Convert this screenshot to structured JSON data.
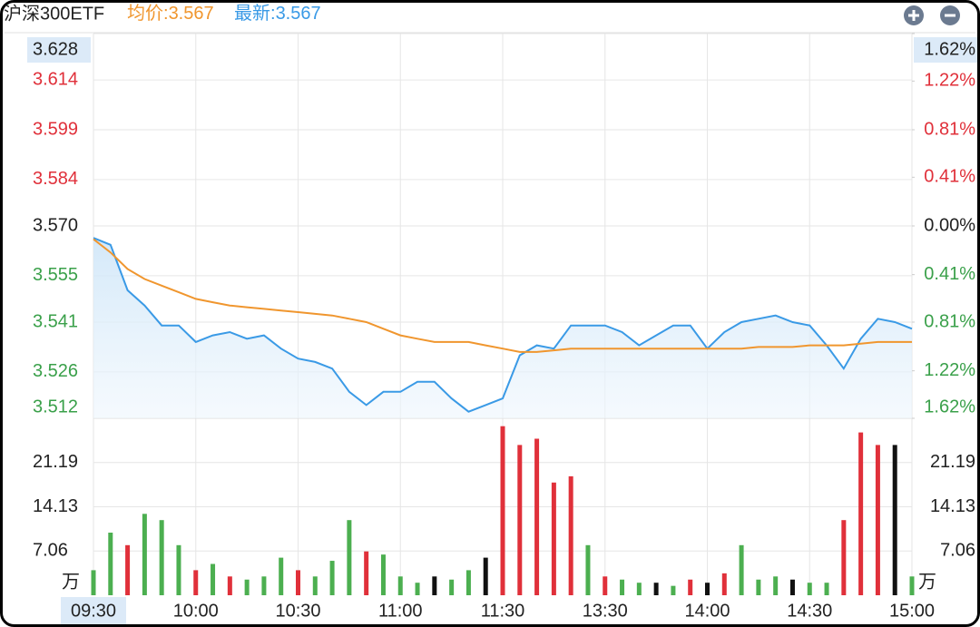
{
  "header": {
    "title": "沪深300ETF",
    "quotes": [
      {
        "label": "均价:",
        "value": 3.567,
        "color": "#f0962e"
      },
      {
        "label": "最新:",
        "value": 3.567,
        "color": "#3a9ae6"
      }
    ]
  },
  "chart_data": {
    "type": "line",
    "categories": [
      "09:30",
      null,
      null,
      null,
      null,
      null,
      "10:00",
      null,
      null,
      null,
      null,
      null,
      "10:30",
      null,
      null,
      null,
      null,
      null,
      "11:00",
      null,
      null,
      null,
      null,
      null,
      "11:30",
      null,
      null,
      null,
      null,
      null,
      "13:30",
      null,
      null,
      null,
      null,
      null,
      "14:00",
      null,
      null,
      null,
      null,
      null,
      "14:30",
      null,
      null,
      null,
      null,
      null,
      "15:00"
    ],
    "series": [
      {
        "color": "#3a9ae6",
        "values": [
          3.5664,
          3.5643,
          3.5506,
          3.546,
          3.54,
          3.54,
          3.535,
          3.537,
          3.538,
          3.536,
          3.537,
          3.533,
          3.53,
          3.529,
          3.527,
          3.52,
          3.516,
          3.52,
          3.52,
          3.523,
          3.523,
          3.518,
          3.514,
          3.516,
          3.518,
          3.531,
          3.534,
          3.533,
          3.54,
          3.54,
          3.54,
          3.538,
          3.534,
          3.537,
          3.54,
          3.54,
          3.533,
          3.538,
          3.541,
          3.542,
          3.543,
          3.541,
          3.54,
          3.534,
          3.527,
          3.536,
          3.542,
          3.541,
          3.539
        ]
      },
      {
        "color": "#f0962e",
        "values": [
          3.566,
          3.562,
          3.557,
          3.554,
          3.552,
          3.55,
          3.548,
          3.547,
          3.546,
          3.5455,
          3.545,
          3.5445,
          3.544,
          3.5435,
          3.543,
          3.542,
          3.541,
          3.539,
          3.537,
          3.536,
          3.535,
          3.535,
          3.535,
          3.534,
          3.533,
          3.532,
          3.532,
          3.5325,
          3.533,
          3.533,
          3.533,
          3.533,
          3.533,
          3.533,
          3.533,
          3.533,
          3.533,
          3.533,
          3.533,
          3.5335,
          3.5335,
          3.5335,
          3.534,
          3.534,
          3.534,
          3.5345,
          3.535,
          3.535,
          3.535
        ]
      }
    ],
    "ylim": [
      3.512,
      3.628
    ],
    "yticks": [
      3.512,
      3.526,
      3.541,
      3.555,
      {
        "value": 3.57,
        "label": "3.570"
      },
      3.584,
      3.599,
      3.614,
      3.628
    ],
    "y2lim": [
      -1.62,
      1.62
    ],
    "y2ticks": [
      {
        "value": -1.62,
        "label": "1.62%"
      },
      {
        "value": -1.22,
        "label": "1.22%"
      },
      {
        "value": -0.81,
        "label": "0.81%"
      },
      {
        "value": -0.41,
        "label": "0.41%"
      },
      {
        "value": 0,
        "label": "0.00%"
      },
      {
        "value": 0.41,
        "label": "0.41%"
      },
      {
        "value": 0.81,
        "label": "0.81%"
      },
      {
        "value": 1.22,
        "label": "1.22%"
      },
      {
        "value": 1.62,
        "label": "1.62%"
      }
    ],
    "grid": true,
    "volume": {
      "type": "bar",
      "unit": "万",
      "ylim": [
        0,
        28.26
      ],
      "yticks": [
        7.06,
        14.13,
        21.19
      ],
      "values": [
        4,
        10,
        8,
        13,
        12,
        8,
        4,
        5,
        3,
        2.5,
        3,
        6,
        4,
        3,
        5.5,
        12,
        7,
        6.5,
        3,
        2,
        3,
        2.5,
        4,
        6,
        27,
        24,
        25,
        18,
        19,
        8,
        3,
        2.5,
        2,
        2,
        1.5,
        2.5,
        2,
        3.5,
        8,
        2.5,
        3,
        2.5,
        2,
        2,
        12,
        26,
        24,
        24,
        3
      ],
      "colors": [
        "#4caf50",
        "#4caf50",
        "#e0303a",
        "#4caf50",
        "#4caf50",
        "#4caf50",
        "#e0303a",
        "#4caf50",
        "#e0303a",
        "#4caf50",
        "#4caf50",
        "#4caf50",
        "#e0303a",
        "#4caf50",
        "#4caf50",
        "#4caf50",
        "#e0303a",
        "#4caf50",
        "#4caf50",
        "#4caf50",
        "#111111",
        "#4caf50",
        "#4caf50",
        "#111111",
        "#e0303a",
        "#e0303a",
        "#e0303a",
        "#e0303a",
        "#e0303a",
        "#4caf50",
        "#e0303a",
        "#4caf50",
        "#4caf50",
        "#111111",
        "#4caf50",
        "#e0303a",
        "#111111",
        "#e0303a",
        "#4caf50",
        "#4caf50",
        "#4caf50",
        "#111111",
        "#4caf50",
        "#4caf50",
        "#e0303a",
        "#e0303a",
        "#e0303a",
        "#111111",
        "#4caf50"
      ]
    }
  }
}
